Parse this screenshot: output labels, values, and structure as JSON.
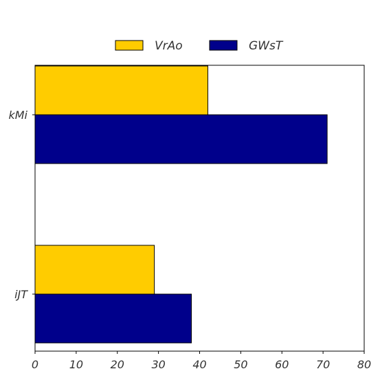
{
  "chart_data": {
    "type": "bar",
    "orientation": "horizontal",
    "title": "",
    "xlabel": "",
    "ylabel": "",
    "categories": [
      "kMi",
      "iJT"
    ],
    "series": [
      {
        "name": "VrAo",
        "color": "#FFCC00",
        "values": [
          42,
          29
        ]
      },
      {
        "name": "GWsT",
        "color": "#00008B",
        "values": [
          71,
          38
        ]
      }
    ],
    "xlim": [
      0,
      80
    ],
    "xticks": [
      0,
      10,
      20,
      30,
      40,
      50,
      60,
      70,
      80
    ],
    "grid": false,
    "legend_position": "top-center"
  }
}
